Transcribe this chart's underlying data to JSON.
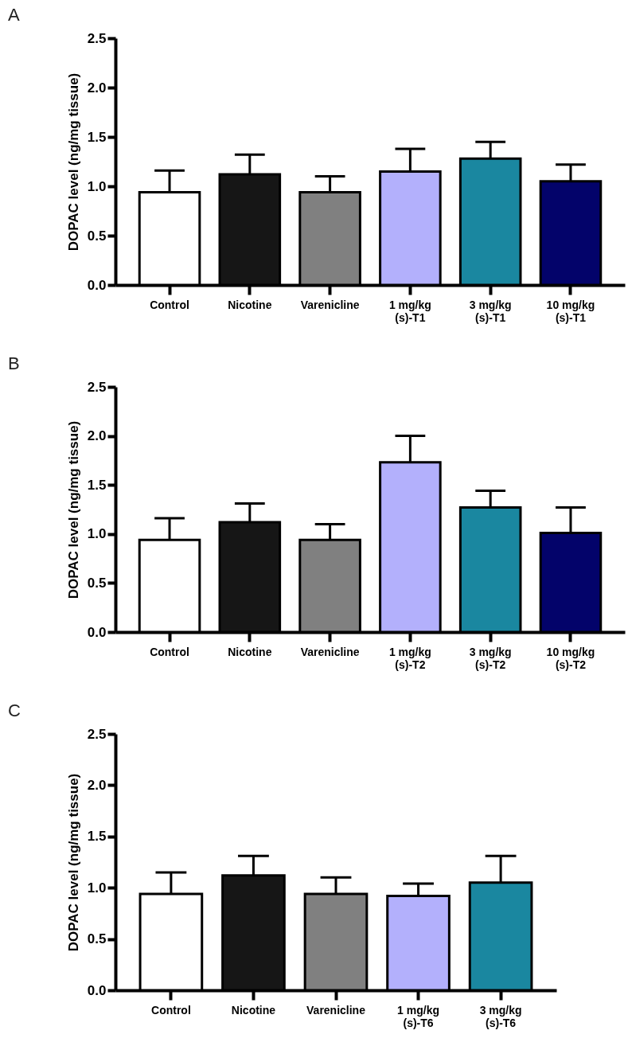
{
  "chart_data": [
    {
      "type": "bar",
      "title": "A",
      "ylabel": "DOPAC level (ng/mg tissue)",
      "categories": [
        "Control",
        "Nicotine",
        "Varenicline",
        "1 mg/kg\n(s)-T1",
        "3 mg/kg\n(s)-T1",
        "10 mg/kg\n(s)-T1"
      ],
      "values": [
        0.94,
        1.12,
        0.94,
        1.15,
        1.28,
        1.05
      ],
      "errors": [
        0.22,
        0.2,
        0.16,
        0.23,
        0.17,
        0.17
      ],
      "colors": [
        "#ffffff",
        "#161616",
        "#808080",
        "#b3b0fc",
        "#1a87a0",
        "#03036a"
      ],
      "ylim": [
        0,
        2.5
      ],
      "yticks": [
        {
          "value": 0,
          "label": "0.0"
        },
        0.5,
        {
          "value": 1,
          "label": "1.0"
        },
        1.5,
        {
          "value": 2,
          "label": "2.0"
        },
        2.5
      ],
      "grid": false
    },
    {
      "type": "bar",
      "title": "B",
      "ylabel": "DOPAC level (ng/mg tissue)",
      "categories": [
        "Control",
        "Nicotine",
        "Varenicline",
        "1 mg/kg\n(s)-T2",
        "3 mg/kg\n(s)-T2",
        "10 mg/kg\n(s)-T2"
      ],
      "values": [
        0.94,
        1.12,
        0.94,
        1.73,
        1.27,
        1.01
      ],
      "errors": [
        0.22,
        0.19,
        0.16,
        0.27,
        0.17,
        0.26
      ],
      "colors": [
        "#ffffff",
        "#161616",
        "#808080",
        "#b3b0fc",
        "#1a87a0",
        "#03036a"
      ],
      "ylim": [
        0,
        2.5
      ],
      "yticks": [
        {
          "value": 0,
          "label": "0.0"
        },
        0.5,
        {
          "value": 1,
          "label": "1.0"
        },
        1.5,
        {
          "value": 2,
          "label": "2.0"
        },
        2.5
      ],
      "grid": false
    },
    {
      "type": "bar",
      "title": "C",
      "ylabel": "DOPAC level (ng/mg tissue)",
      "categories": [
        "Control",
        "Nicotine",
        "Varenicline",
        "1 mg/kg\n(s)-T6",
        "3 mg/kg\n(s)-T6"
      ],
      "values": [
        0.94,
        1.12,
        0.94,
        0.92,
        1.05
      ],
      "errors": [
        0.21,
        0.19,
        0.16,
        0.12,
        0.26
      ],
      "colors": [
        "#ffffff",
        "#161616",
        "#808080",
        "#b3b0fc",
        "#1a87a0"
      ],
      "ylim": [
        0,
        2.5
      ],
      "yticks": [
        {
          "value": 0,
          "label": "0.0"
        },
        0.5,
        {
          "value": 1,
          "label": "1.0"
        },
        1.5,
        {
          "value": 2,
          "label": "2.0"
        },
        2.5
      ],
      "grid": false
    }
  ]
}
